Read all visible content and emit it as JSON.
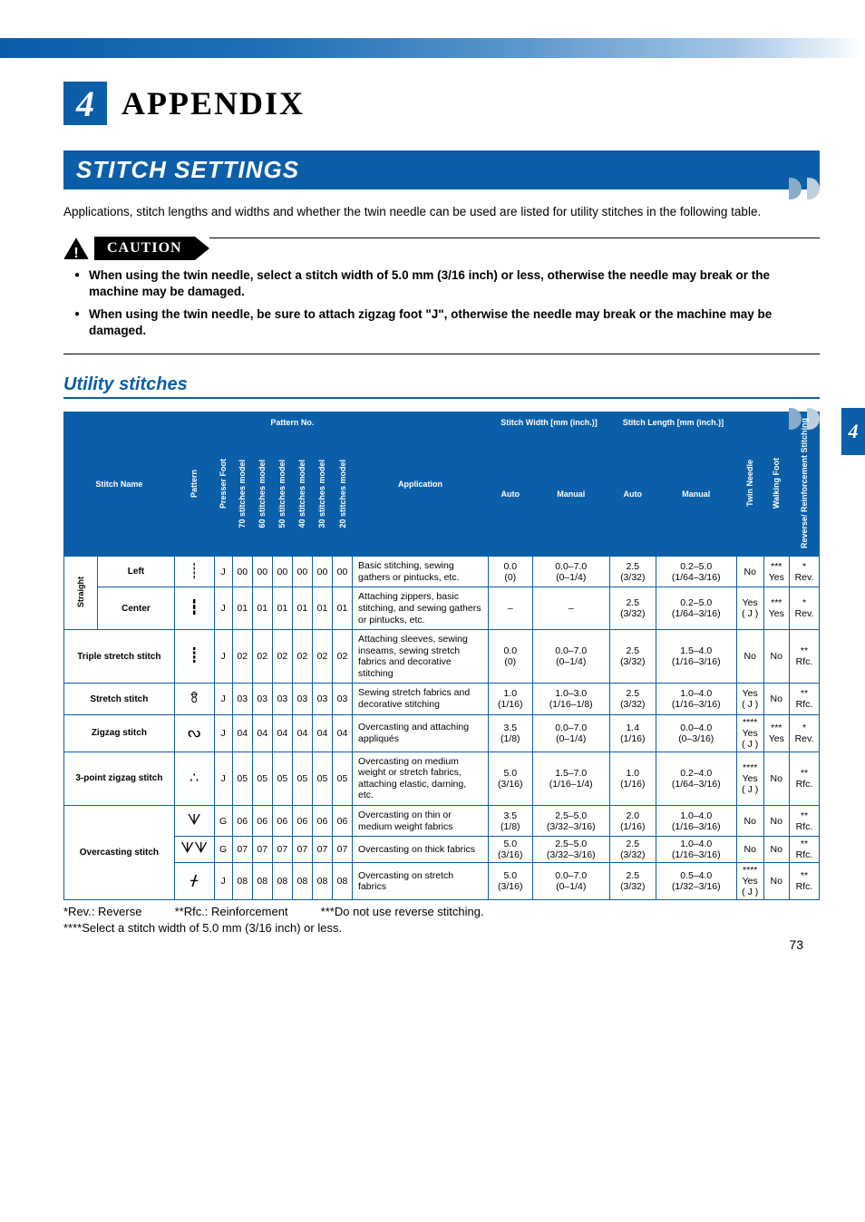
{
  "chapter": {
    "number": "4",
    "title": "APPENDIX"
  },
  "section": {
    "title": "STITCH SETTINGS"
  },
  "intro": "Applications, stitch lengths and widths and whether the twin needle can be used are listed for utility stitches in the following table.",
  "caution": {
    "label": "CAUTION",
    "items": [
      "When using the twin needle, select a stitch width of 5.0 mm (3/16 inch) or less, otherwise the needle may break or the machine may be damaged.",
      "When using the twin needle, be sure to attach zigzag foot \"J\", otherwise the needle may break or the machine may be damaged."
    ]
  },
  "subheading": "Utility stitches",
  "table": {
    "headers": {
      "stitch_name": "Stitch Name",
      "pattern": "Pattern",
      "presser_foot": "Presser Foot",
      "pattern_no": "Pattern No.",
      "models": [
        "70 stitches model",
        "60 stitches model",
        "50 stitches model",
        "40 stitches model",
        "30 stitches model",
        "20 stitches model"
      ],
      "application": "Application",
      "width": "Stitch Width [mm (inch.)]",
      "length": "Stitch Length [mm (inch.)]",
      "auto": "Auto",
      "manual": "Manual",
      "twin_needle": "Twin Needle",
      "walking_foot": "Walking Foot",
      "reverse": "Reverse/ Reinforcement Stitching"
    },
    "rows": [
      {
        "group": "Straight",
        "sub": "Left",
        "rowspan_group": 2,
        "pattern_glyph": "┊",
        "foot": "J",
        "nums": [
          "00",
          "00",
          "00",
          "00",
          "00",
          "00"
        ],
        "app": "Basic stitching, sewing gathers or pintucks, etc.",
        "w_auto": "0.0 (0)",
        "w_man": "0.0–7.0 (0–1/4)",
        "l_auto": "2.5 (3/32)",
        "l_man": "0.2–5.0 (1/64–3/16)",
        "twin": "No",
        "walk": "*** Yes",
        "rev": "* Rev."
      },
      {
        "sub": "Center",
        "pattern_glyph": "┇",
        "foot": "J",
        "nums": [
          "01",
          "01",
          "01",
          "01",
          "01",
          "01"
        ],
        "app": "Attaching zippers, basic stitching, and sewing gathers or pintucks, etc.",
        "w_auto": "–",
        "w_man": "–",
        "l_auto": "2.5 (3/32)",
        "l_man": "0.2–5.0 (1/64–3/16)",
        "twin": "Yes ( J )",
        "walk": "*** Yes",
        "rev": "* Rev."
      },
      {
        "group": "Triple stretch stitch",
        "rowspan_group": 1,
        "pattern_glyph": "┋",
        "foot": "J",
        "nums": [
          "02",
          "02",
          "02",
          "02",
          "02",
          "02"
        ],
        "app": "Attaching sleeves, sewing inseams, sewing stretch fabrics and decorative stitching",
        "w_auto": "0.0 (0)",
        "w_man": "0.0–7.0 (0–1/4)",
        "l_auto": "2.5 (3/32)",
        "l_man": "1.5–4.0 (1/16–3/16)",
        "twin": "No",
        "walk": "No",
        "rev": "** Rfc."
      },
      {
        "group": "Stretch stitch",
        "rowspan_group": 1,
        "pattern_glyph": "ꗉ",
        "foot": "J",
        "nums": [
          "03",
          "03",
          "03",
          "03",
          "03",
          "03"
        ],
        "app": "Sewing stretch fabrics and decorative stitching",
        "w_auto": "1.0 (1/16)",
        "w_man": "1.0–3.0 (1/16–1/8)",
        "l_auto": "2.5 (3/32)",
        "l_man": "1.0–4.0 (1/16–3/16)",
        "twin": "Yes ( J )",
        "walk": "No",
        "rev": "** Rfc."
      },
      {
        "group": "Zigzag stitch",
        "rowspan_group": 1,
        "pattern_glyph": "ᔓ",
        "foot": "J",
        "nums": [
          "04",
          "04",
          "04",
          "04",
          "04",
          "04"
        ],
        "app": "Overcasting and attaching appliqués",
        "w_auto": "3.5 (1/8)",
        "w_man": "0.0–7.0 (0–1/4)",
        "l_auto": "1.4 (1/16)",
        "l_man": "0.0–4.0 (0–3/16)",
        "twin": "**** Yes ( J )",
        "walk": "*** Yes",
        "rev": "* Rev."
      },
      {
        "group": "3-point zigzag stitch",
        "rowspan_group": 1,
        "pattern_glyph": "∴",
        "foot": "J",
        "nums": [
          "05",
          "05",
          "05",
          "05",
          "05",
          "05"
        ],
        "app": "Overcasting on medium weight or stretch fabrics, attaching elastic, darning, etc.",
        "w_auto": "5.0 (3/16)",
        "w_man": "1.5–7.0 (1/16–1/4)",
        "l_auto": "1.0 (1/16)",
        "l_man": "0.2–4.0 (1/64–3/16)",
        "twin": "**** Yes ( J )",
        "walk": "No",
        "rev": "** Rfc."
      },
      {
        "group": "Overcasting stitch",
        "rowspan_group": 3,
        "pattern_glyph": "ᗐ",
        "foot": "G",
        "nums": [
          "06",
          "06",
          "06",
          "06",
          "06",
          "06"
        ],
        "app": "Overcasting on thin or medium weight fabrics",
        "w_auto": "3.5 (1/8)",
        "w_man": "2.5–5.0 (3/32–3/16)",
        "l_auto": "2.0 (1/16)",
        "l_man": "1.0–4.0 (1/16–3/16)",
        "twin": "No",
        "walk": "No",
        "rev": "** Rfc."
      },
      {
        "pattern_glyph": "ᗐᗐ",
        "foot": "G",
        "nums": [
          "07",
          "07",
          "07",
          "07",
          "07",
          "07"
        ],
        "app": "Overcasting on thick fabrics",
        "w_auto": "5.0 (3/16)",
        "w_man": "2.5–5.0 (3/32–3/16)",
        "l_auto": "2.5 (3/32)",
        "l_man": "1.0–4.0 (1/16–3/16)",
        "twin": "No",
        "walk": "No",
        "rev": "** Rfc."
      },
      {
        "pattern_glyph": "ᚋ",
        "foot": "J",
        "nums": [
          "08",
          "08",
          "08",
          "08",
          "08",
          "08"
        ],
        "app": "Overcasting on stretch fabrics",
        "w_auto": "5.0 (3/16)",
        "w_man": "0.0–7.0 (0–1/4)",
        "l_auto": "2.5 (3/32)",
        "l_man": "0.5–4.0 (1/32–3/16)",
        "twin": "**** Yes ( J )",
        "walk": "No",
        "rev": "** Rfc."
      }
    ]
  },
  "footnotes": {
    "line1": "*Rev.: Reverse          **Rfc.: Reinforcement          ***Do not use reverse stitching.",
    "line2": "****Select a stitch width of 5.0 mm (3/16 inch) or less."
  },
  "page_number": "73",
  "side_tab": "4",
  "colors": {
    "brand": "#0b5ea8",
    "band_light": "#a4c6e6"
  }
}
